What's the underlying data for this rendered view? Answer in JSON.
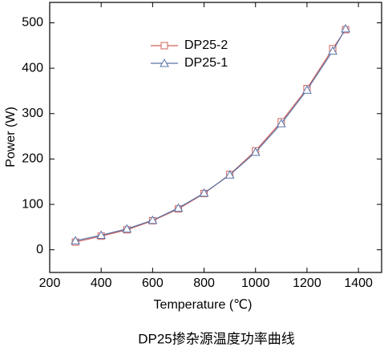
{
  "chart_data": {
    "type": "line",
    "caption": "DP25掺杂源温度功率曲线",
    "x_label": "Temperature (℃)",
    "y_label": "Power (W)",
    "x": [
      300,
      400,
      500,
      600,
      700,
      800,
      900,
      1000,
      1100,
      1200,
      1300,
      1350
    ],
    "series": [
      {
        "name": "DP25-2",
        "color": "#d0605a",
        "marker": "square",
        "values": [
          17,
          30,
          44,
          64,
          90,
          124,
          166,
          218,
          282,
          355,
          443,
          485
        ]
      },
      {
        "name": "DP25-1",
        "color": "#5a74a8",
        "marker": "triangle",
        "values": [
          20,
          32,
          46,
          65,
          92,
          125,
          165,
          215,
          278,
          352,
          438,
          487
        ]
      }
    ],
    "xlim": [
      200,
      1490
    ],
    "ylim": [
      -50,
      545
    ],
    "xticks": [
      200,
      400,
      600,
      800,
      1000,
      1200,
      1400
    ],
    "yticks": [
      0,
      100,
      200,
      300,
      400,
      500
    ],
    "legend": "upper-center"
  }
}
